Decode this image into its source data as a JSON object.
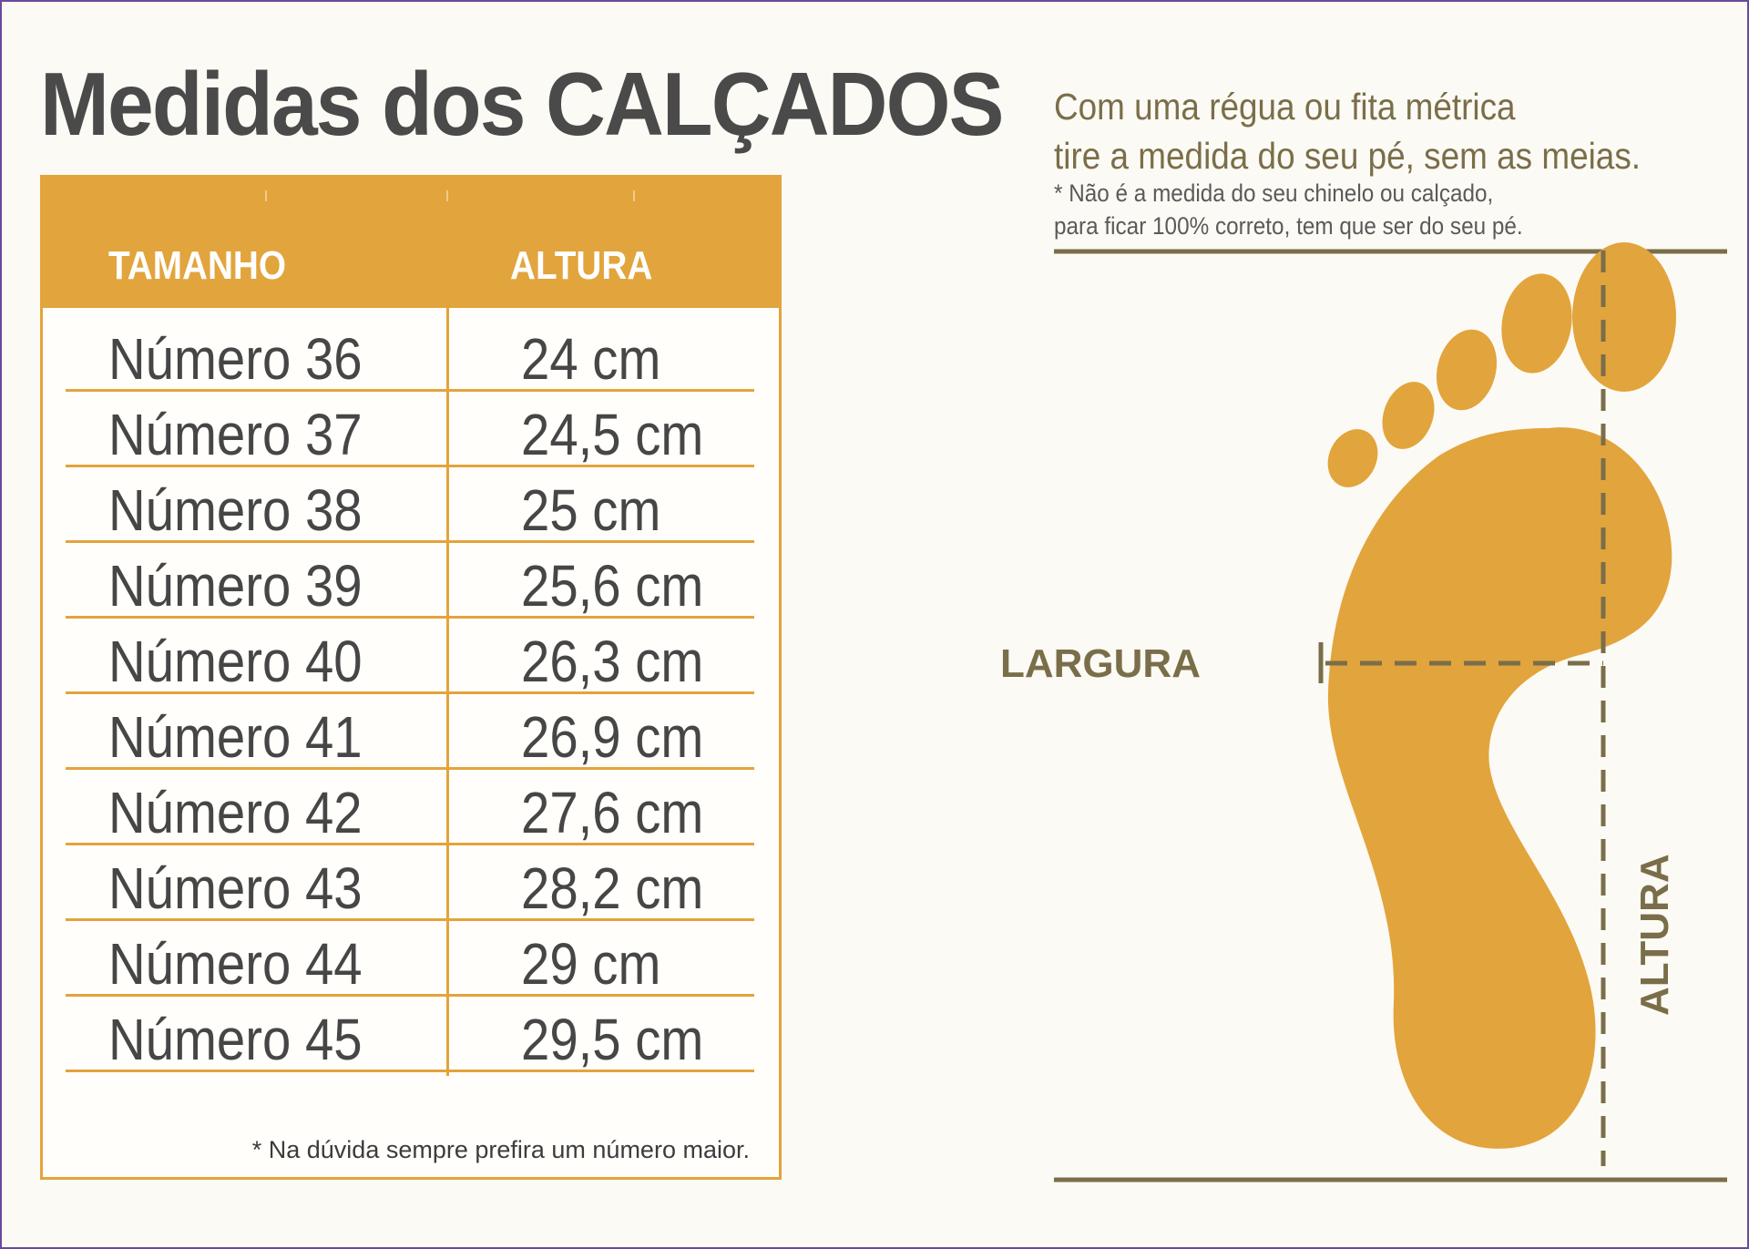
{
  "title": "Medidas dos CALÇADOS",
  "table": {
    "headers": {
      "size": "TAMANHO",
      "height": "ALTURA"
    },
    "rows": [
      {
        "size": "Número 36",
        "height": "24 cm"
      },
      {
        "size": "Número 37",
        "height": "24,5 cm"
      },
      {
        "size": "Número 38",
        "height": "25 cm"
      },
      {
        "size": "Número 39",
        "height": "25,6 cm"
      },
      {
        "size": "Número 40",
        "height": "26,3 cm"
      },
      {
        "size": "Número 41",
        "height": "26,9 cm"
      },
      {
        "size": "Número 42",
        "height": "27,6 cm"
      },
      {
        "size": "Número 43",
        "height": "28,2 cm"
      },
      {
        "size": "Número 44",
        "height": "29 cm"
      },
      {
        "size": "Número 45",
        "height": "29,5 cm"
      }
    ],
    "footnote": "* Na dúvida sempre prefira um número maior."
  },
  "instructions": {
    "line1": "Com uma régua ou fita métrica",
    "line2": "tire a medida do seu pé, sem as meias.",
    "note1": "* Não é a medida do seu chinelo ou calçado,",
    "note2": "para ficar 100% correto, tem que ser do seu pé."
  },
  "diagram": {
    "width_label": "LARGURA",
    "length_label": "ALTURA",
    "foot_icon": "foot-icon"
  },
  "colors": {
    "accent": "#e2a43c",
    "measure_lines": "#7a6e4a",
    "title_text": "#4a4a4a",
    "border": "#6a4a9c"
  }
}
